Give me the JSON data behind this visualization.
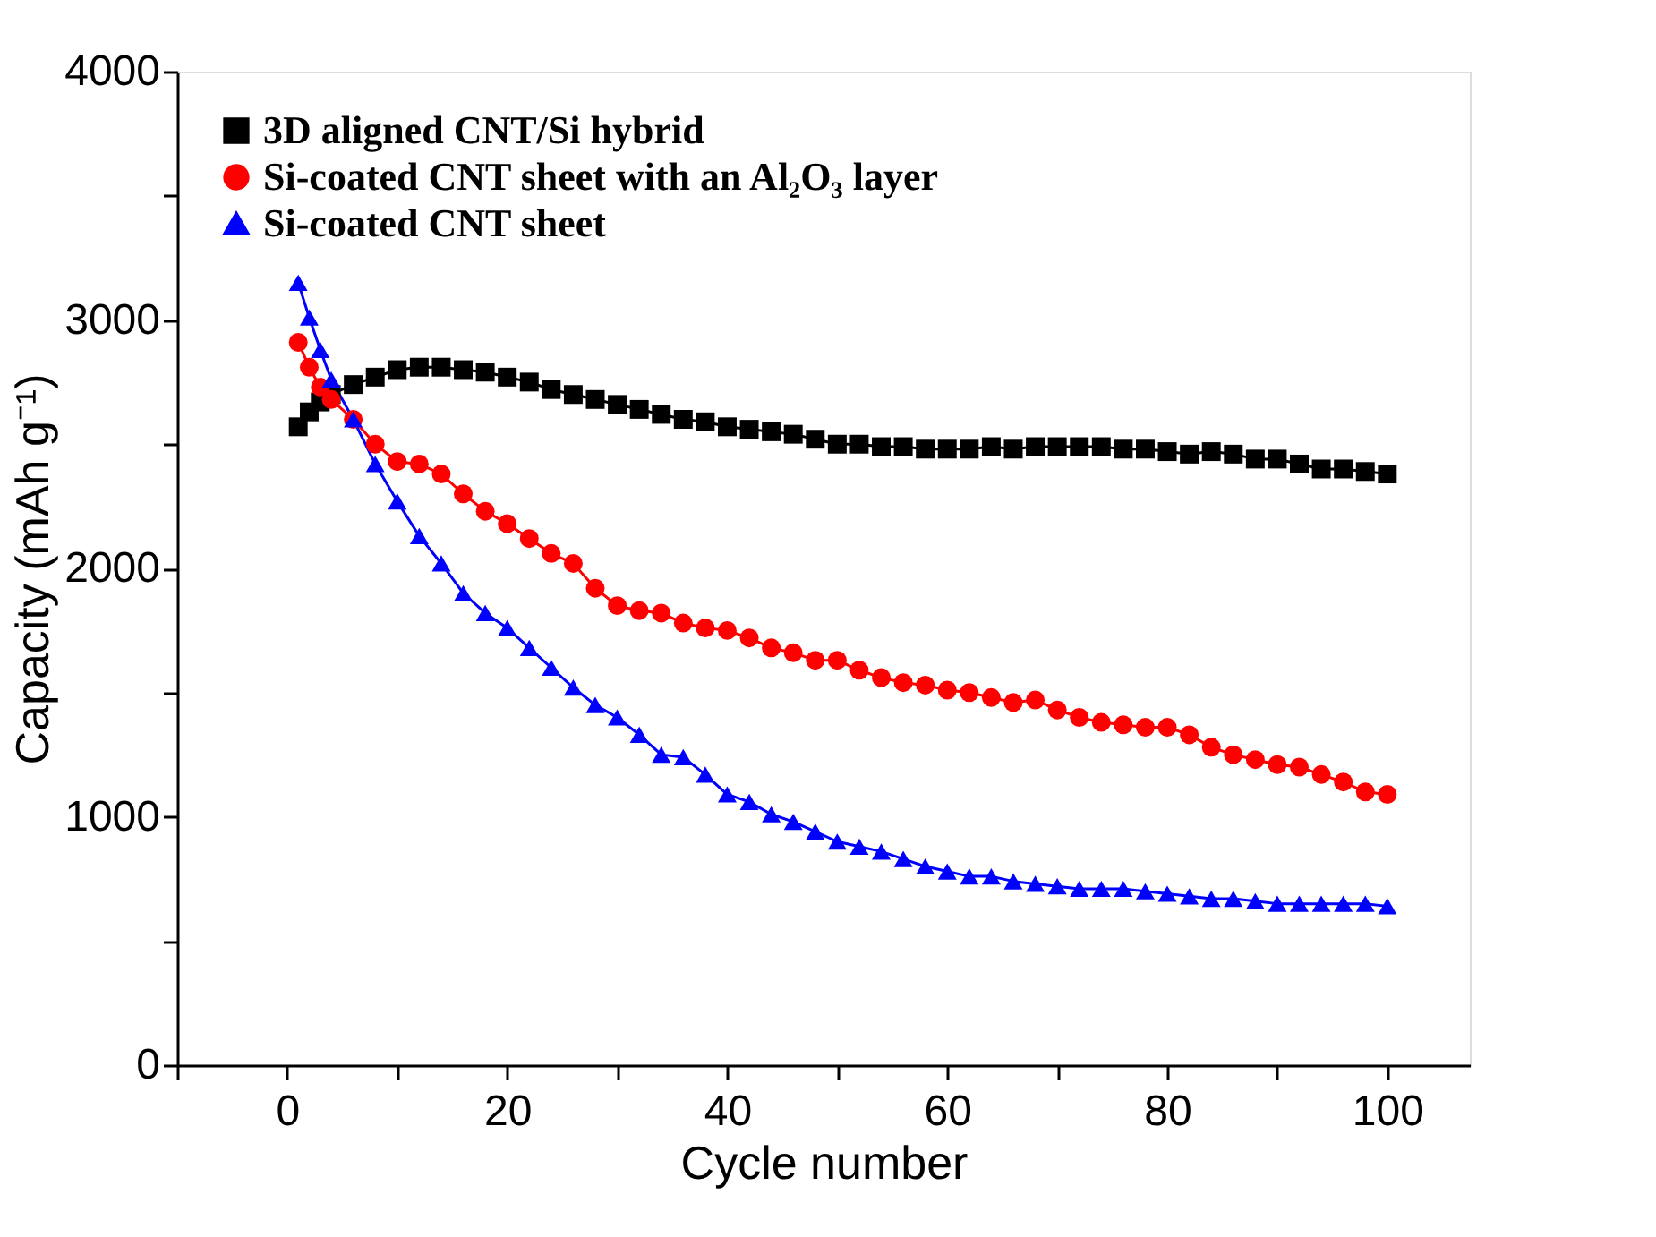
{
  "chart_data": {
    "type": "line",
    "xlabel": "Cycle number",
    "ylabel": "Capacity (mAh g⁻¹)",
    "x": [
      1,
      2,
      3,
      4,
      6,
      8,
      10,
      12,
      14,
      16,
      18,
      20,
      22,
      24,
      26,
      28,
      30,
      32,
      34,
      36,
      38,
      40,
      42,
      44,
      46,
      48,
      50,
      52,
      54,
      56,
      58,
      60,
      62,
      64,
      66,
      68,
      70,
      72,
      74,
      76,
      78,
      80,
      82,
      84,
      86,
      88,
      90,
      92,
      94,
      96,
      98,
      100
    ],
    "xlim": [
      -10,
      107.5
    ],
    "ylim": [
      0,
      4000
    ],
    "xticks": [
      {
        "value": -10,
        "label": null
      },
      0,
      {
        "value": 10,
        "label": null
      },
      20,
      {
        "value": 30,
        "label": null
      },
      40,
      {
        "value": 50,
        "label": null
      },
      60,
      {
        "value": 70,
        "label": null
      },
      80,
      {
        "value": 90,
        "label": null
      },
      100
    ],
    "yticks": [
      0,
      {
        "value": 500,
        "label": null
      },
      1000,
      {
        "value": 1500,
        "label": null
      },
      2000,
      {
        "value": 2500,
        "label": null
      },
      3000,
      {
        "value": 3500,
        "label": null
      },
      4000
    ],
    "grid": false,
    "legend": "top left",
    "series": [
      {
        "name": "3D aligned CNT/Si hybrid",
        "color": "#000000",
        "marker": "square",
        "values": [
          2570,
          2630,
          2670,
          2700,
          2740,
          2770,
          2800,
          2810,
          2810,
          2800,
          2790,
          2770,
          2750,
          2720,
          2700,
          2680,
          2660,
          2640,
          2620,
          2600,
          2590,
          2570,
          2560,
          2550,
          2540,
          2520,
          2500,
          2500,
          2490,
          2490,
          2480,
          2480,
          2480,
          2490,
          2480,
          2490,
          2490,
          2490,
          2490,
          2480,
          2480,
          2470,
          2460,
          2470,
          2460,
          2440,
          2440,
          2420,
          2400,
          2400,
          2390,
          2380
        ]
      },
      {
        "name": "Si-coated CNT sheet with an Al₂O₃  layer",
        "color": "#ff0000",
        "marker": "circle",
        "values": [
          2910,
          2810,
          2730,
          2680,
          2600,
          2500,
          2430,
          2420,
          2380,
          2300,
          2230,
          2180,
          2120,
          2060,
          2020,
          1920,
          1850,
          1830,
          1820,
          1780,
          1760,
          1750,
          1720,
          1680,
          1660,
          1630,
          1630,
          1590,
          1560,
          1540,
          1530,
          1510,
          1500,
          1480,
          1460,
          1470,
          1430,
          1400,
          1380,
          1370,
          1360,
          1360,
          1330,
          1280,
          1250,
          1230,
          1210,
          1200,
          1170,
          1140,
          1100,
          1090
        ]
      },
      {
        "name": "Si-coated CNT sheet",
        "color": "#0000ff",
        "marker": "triangle",
        "values": [
          3150,
          3010,
          2880,
          2760,
          2600,
          2420,
          2270,
          2130,
          2020,
          1900,
          1820,
          1760,
          1680,
          1600,
          1520,
          1450,
          1400,
          1330,
          1250,
          1240,
          1170,
          1090,
          1060,
          1010,
          980,
          940,
          900,
          880,
          860,
          830,
          800,
          780,
          760,
          760,
          740,
          730,
          720,
          710,
          710,
          710,
          700,
          690,
          680,
          670,
          670,
          660,
          650,
          650,
          650,
          650,
          650,
          640
        ]
      }
    ]
  }
}
